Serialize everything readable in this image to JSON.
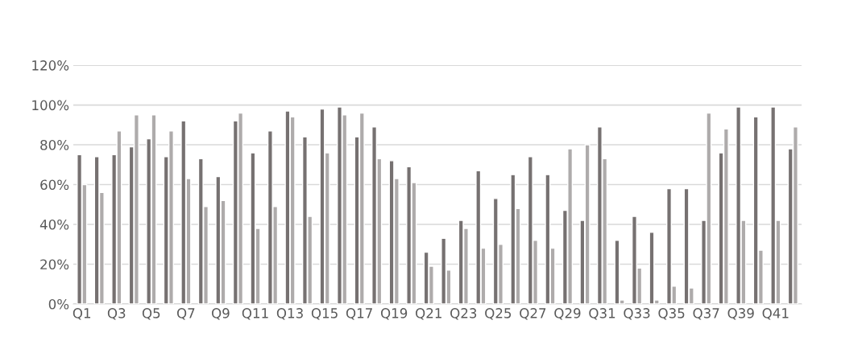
{
  "chart_data": {
    "type": "bar",
    "categories": [
      "Q1",
      null,
      "Q3",
      null,
      "Q5",
      null,
      "Q7",
      null,
      "Q9",
      null,
      "Q11",
      null,
      "Q13",
      null,
      "Q15",
      null,
      "Q17",
      null,
      "Q19",
      null,
      "Q21",
      null,
      "Q23",
      null,
      "Q25",
      null,
      "Q27",
      null,
      "Q29",
      null,
      "Q31",
      null,
      "Q33",
      null,
      "Q35",
      null,
      "Q37",
      null,
      "Q39",
      null,
      "Q41",
      null
    ],
    "series": [
      {
        "color": "#767171",
        "values": [
          75,
          74,
          75,
          79,
          83,
          74,
          92,
          73,
          64,
          92,
          76,
          87,
          97,
          84,
          98,
          99,
          84,
          89,
          72,
          69,
          26,
          33,
          42,
          67,
          53,
          65,
          74,
          65,
          47,
          42,
          89,
          32,
          44,
          36,
          58,
          58,
          42,
          76,
          99,
          94,
          99,
          78
        ]
      },
      {
        "color": "#aeabab",
        "values": [
          60,
          56,
          87,
          95,
          95,
          87,
          63,
          49,
          52,
          96,
          38,
          49,
          94,
          44,
          76,
          95,
          96,
          73,
          63,
          61,
          19,
          17,
          38,
          28,
          30,
          48,
          32,
          28,
          78,
          80,
          73,
          2,
          18,
          2,
          9,
          8,
          96,
          88,
          42,
          27,
          42,
          89
        ]
      }
    ],
    "ylim": [
      0,
      120
    ],
    "yticks": [
      {
        "value": 0,
        "label": "0%"
      },
      {
        "value": 20,
        "label": "20%"
      },
      {
        "value": 40,
        "label": "40%"
      },
      {
        "value": 60,
        "label": "60%"
      },
      {
        "value": 80,
        "label": "80%"
      },
      {
        "value": 100,
        "label": "100%"
      },
      {
        "value": 120,
        "label": "120%"
      }
    ],
    "grid": "y"
  }
}
